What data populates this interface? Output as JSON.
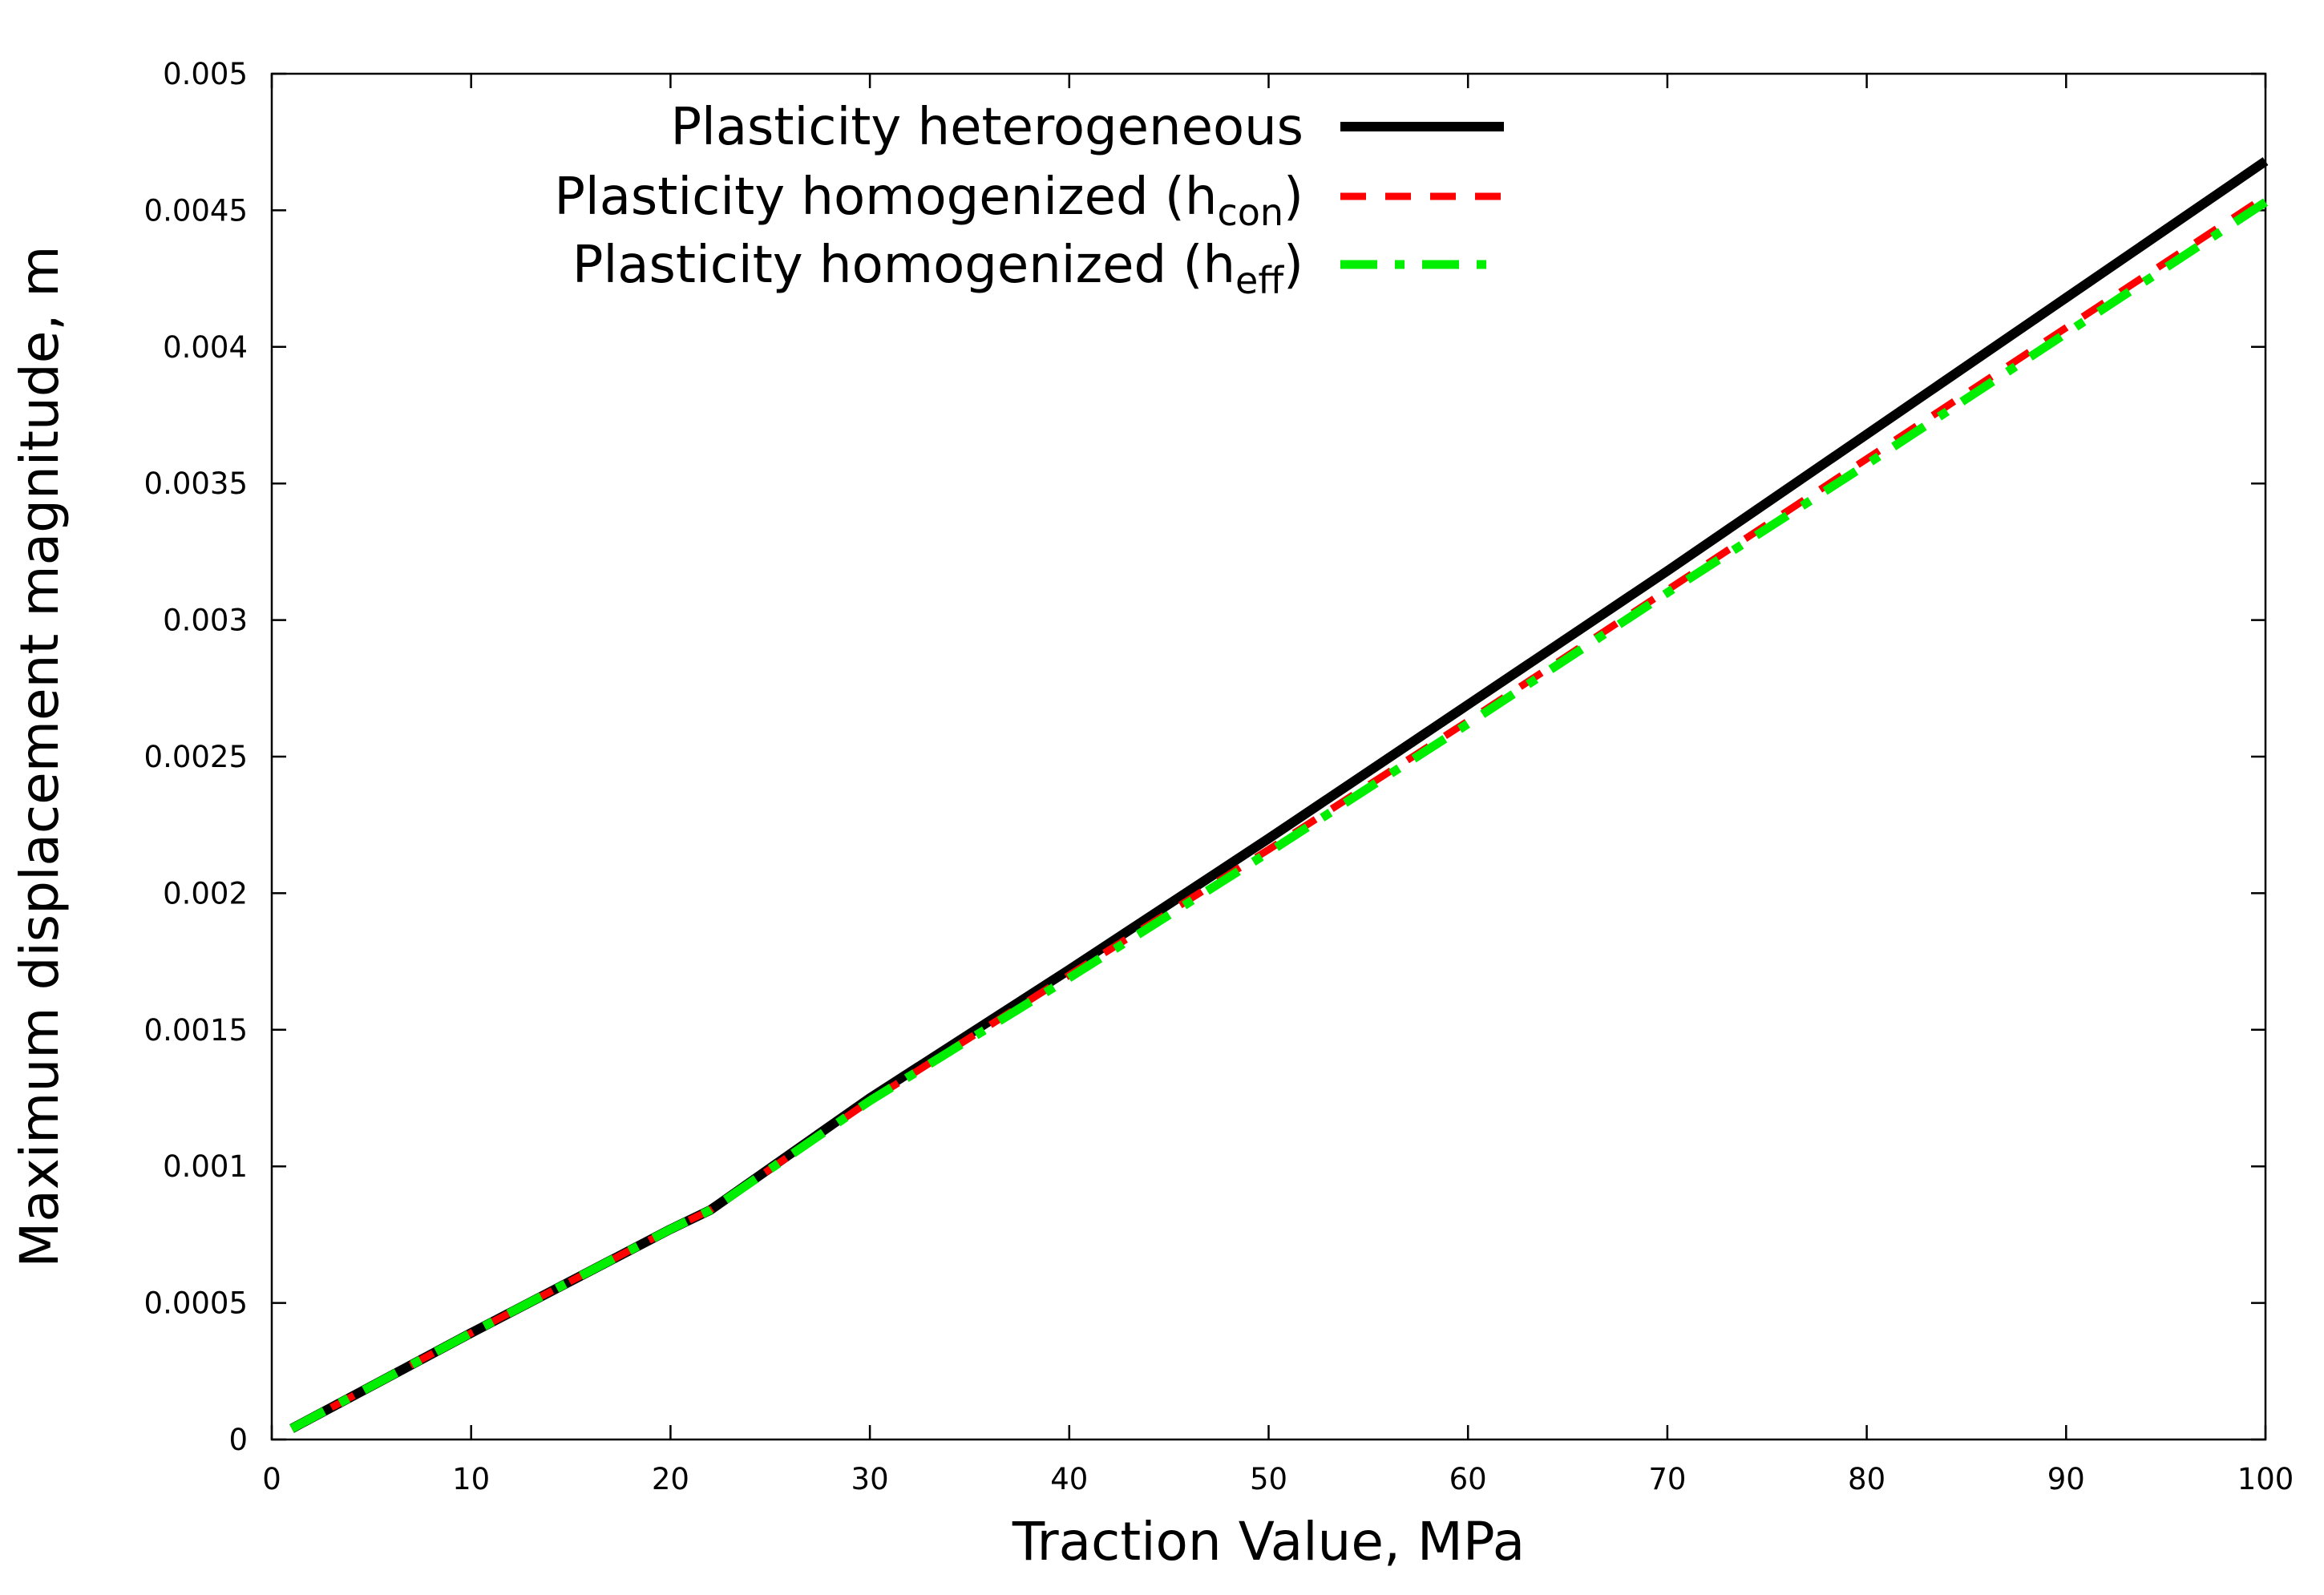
{
  "chart_data": {
    "type": "line",
    "title": "",
    "xlabel": "Traction Value, MPa",
    "ylabel": "Maximum displacement magnitude, m",
    "xlim": [
      0,
      100
    ],
    "ylim": [
      0,
      0.005
    ],
    "xticks": [
      0,
      10,
      20,
      30,
      40,
      50,
      60,
      70,
      80,
      90,
      100
    ],
    "xtick_labels": [
      "0",
      "10",
      "20",
      "30",
      "40",
      "50",
      "60",
      "70",
      "80",
      "90",
      "100"
    ],
    "yticks": [
      0,
      0.0005,
      0.001,
      0.0015,
      0.002,
      0.0025,
      0.003,
      0.0035,
      0.004,
      0.0045,
      0.005
    ],
    "ytick_labels": [
      "0",
      "0.0005",
      "0.001",
      "0.0015",
      "0.002",
      "0.0025",
      "0.003",
      "0.0035",
      "0.004",
      "0.0045",
      "0.005"
    ],
    "grid": false,
    "legend_position": "top-right",
    "series": [
      {
        "name": "Plasticity heterogeneous",
        "label_main": "Plasticity heterogeneous",
        "label_sub": "",
        "label_close": "",
        "color": "#000000",
        "style": "solid",
        "x": [
          1,
          10,
          20,
          22,
          30,
          40,
          50,
          60,
          70,
          80,
          90,
          100
        ],
        "y": [
          4e-05,
          0.00039,
          0.00077,
          0.00084,
          0.00125,
          0.00172,
          0.0022,
          0.00269,
          0.00318,
          0.00368,
          0.00418,
          0.00468
        ]
      },
      {
        "name": "Plasticity homogenized (hcon)",
        "label_main": "Plasticity homogenized (h",
        "label_sub": "con",
        "label_close": ")",
        "color": "#ff0000",
        "style": "dashed",
        "x": [
          1,
          10,
          20,
          22,
          30,
          40,
          50,
          60,
          70,
          80,
          90,
          100
        ],
        "y": [
          4e-05,
          0.00039,
          0.00077,
          0.00084,
          0.00124,
          0.0017,
          0.00216,
          0.00263,
          0.00311,
          0.00359,
          0.00407,
          0.00455
        ]
      },
      {
        "name": "Plasticity homogenized (heff)",
        "label_main": "Plasticity homogenized (h",
        "label_sub": "eff",
        "label_close": ")",
        "color": "#00ee00",
        "style": "dashdot",
        "x": [
          1,
          10,
          20,
          22,
          30,
          40,
          50,
          60,
          70,
          80,
          90,
          100
        ],
        "y": [
          4e-05,
          0.00039,
          0.00077,
          0.00084,
          0.00124,
          0.00169,
          0.00215,
          0.00262,
          0.0031,
          0.00357,
          0.00405,
          0.00453
        ]
      }
    ]
  }
}
